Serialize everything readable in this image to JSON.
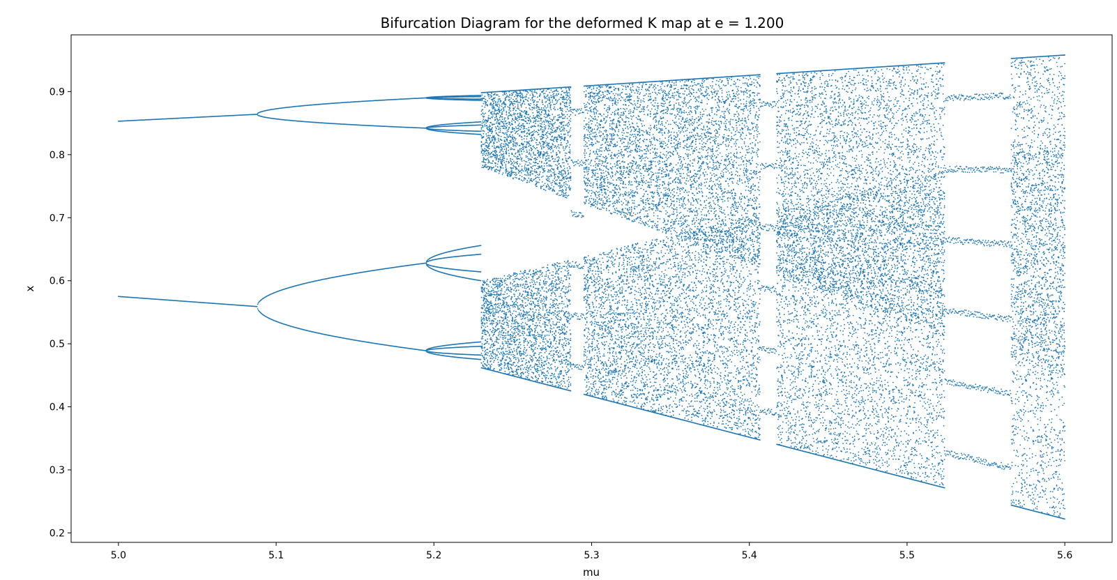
{
  "chart_data": {
    "type": "scatter",
    "title": "Bifurcation Diagram for the deformed K map at e = 1.200",
    "xlabel": "mu",
    "ylabel": "x",
    "xlim": [
      4.97,
      5.63
    ],
    "ylim": [
      0.185,
      0.99
    ],
    "x_ticks": [
      5.0,
      5.1,
      5.2,
      5.3,
      5.4,
      5.5,
      5.6
    ],
    "x_tick_labels": [
      "5.0",
      "5.1",
      "5.2",
      "5.3",
      "5.4",
      "5.5",
      "5.6"
    ],
    "y_ticks": [
      0.2,
      0.3,
      0.4,
      0.5,
      0.6,
      0.7,
      0.8,
      0.9
    ],
    "y_tick_labels": [
      "0.2",
      "0.3",
      "0.4",
      "0.5",
      "0.6",
      "0.7",
      "0.8",
      "0.9"
    ],
    "grid": false,
    "legend": "none",
    "point_color": "#1f77b4",
    "mu_range": [
      5.0,
      5.6
    ],
    "periodic_windows": [
      {
        "mu_start": 5.287,
        "mu_end": 5.295
      },
      {
        "mu_start": 5.407,
        "mu_end": 5.417
      },
      {
        "mu_start": 5.524,
        "mu_end": 5.566
      }
    ],
    "branches": [
      {
        "name": "period-2 upper",
        "points": [
          [
            5.0,
            0.853
          ],
          [
            5.05,
            0.858
          ],
          [
            5.088,
            0.864
          ]
        ]
      },
      {
        "name": "period-2 lower",
        "points": [
          [
            5.0,
            0.575
          ],
          [
            5.05,
            0.566
          ],
          [
            5.088,
            0.559
          ]
        ]
      },
      {
        "name": "period-4 a",
        "points": [
          [
            5.088,
            0.864
          ],
          [
            5.12,
            0.878
          ],
          [
            5.16,
            0.886
          ],
          [
            5.195,
            0.89
          ]
        ]
      },
      {
        "name": "period-4 b",
        "points": [
          [
            5.088,
            0.864
          ],
          [
            5.12,
            0.852
          ],
          [
            5.16,
            0.846
          ],
          [
            5.195,
            0.842
          ]
        ]
      },
      {
        "name": "period-4 c",
        "points": [
          [
            5.088,
            0.559
          ],
          [
            5.11,
            0.59
          ],
          [
            5.15,
            0.612
          ],
          [
            5.195,
            0.628
          ]
        ]
      },
      {
        "name": "period-4 d",
        "points": [
          [
            5.088,
            0.559
          ],
          [
            5.11,
            0.524
          ],
          [
            5.15,
            0.503
          ],
          [
            5.195,
            0.489
          ]
        ]
      }
    ],
    "chaos_envelope": {
      "mu": [
        5.21,
        5.25,
        5.3,
        5.35,
        5.4,
        5.45,
        5.5,
        5.55,
        5.6
      ],
      "x_max": [
        0.895,
        0.902,
        0.91,
        0.918,
        0.926,
        0.933,
        0.942,
        0.95,
        0.958
      ],
      "x_min": [
        0.475,
        0.455,
        0.432,
        0.405,
        0.372,
        0.34,
        0.3,
        0.262,
        0.222
      ]
    }
  }
}
